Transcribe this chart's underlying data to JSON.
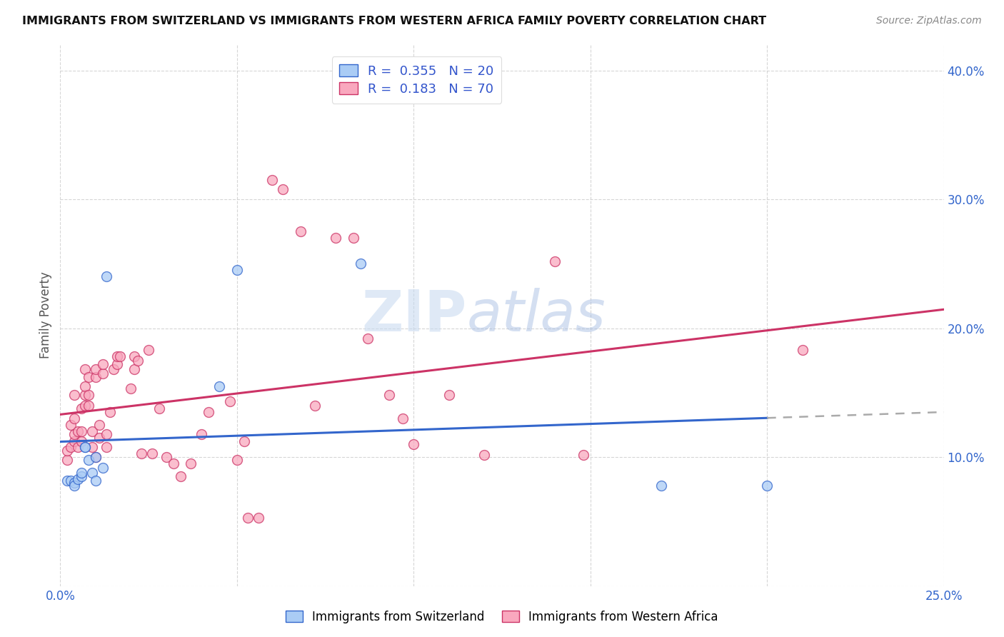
{
  "title": "IMMIGRANTS FROM SWITZERLAND VS IMMIGRANTS FROM WESTERN AFRICA FAMILY POVERTY CORRELATION CHART",
  "source": "Source: ZipAtlas.com",
  "ylabel": "Family Poverty",
  "xlim": [
    0.0,
    0.25
  ],
  "ylim": [
    0.0,
    0.42
  ],
  "xticks": [
    0.0,
    0.05,
    0.1,
    0.15,
    0.2,
    0.25
  ],
  "xticklabels": [
    "0.0%",
    "",
    "",
    "",
    "",
    "25.0%"
  ],
  "yticks": [
    0.0,
    0.1,
    0.2,
    0.3,
    0.4
  ],
  "yticklabels": [
    "",
    "10.0%",
    "20.0%",
    "30.0%",
    "40.0%"
  ],
  "switzerland_color": "#aaccf5",
  "western_africa_color": "#f9a8be",
  "trendline_switzerland_color": "#3366cc",
  "trendline_western_africa_color": "#cc3366",
  "trendline_dashed_color": "#aaaaaa",
  "R_switzerland": 0.355,
  "N_switzerland": 20,
  "R_western_africa": 0.183,
  "N_western_africa": 70,
  "watermark_zip": "ZIP",
  "watermark_atlas": "atlas",
  "legend_label_switzerland": "Immigrants from Switzerland",
  "legend_label_western_africa": "Immigrants from Western Africa",
  "sw_x": [
    0.002,
    0.003,
    0.004,
    0.004,
    0.005,
    0.006,
    0.006,
    0.007,
    0.007,
    0.008,
    0.009,
    0.01,
    0.01,
    0.012,
    0.013,
    0.045,
    0.05,
    0.085,
    0.17,
    0.2
  ],
  "sw_y": [
    0.082,
    0.082,
    0.08,
    0.078,
    0.083,
    0.085,
    0.088,
    0.108,
    0.108,
    0.098,
    0.088,
    0.082,
    0.1,
    0.092,
    0.24,
    0.155,
    0.245,
    0.25,
    0.078,
    0.078
  ],
  "wa_x": [
    0.002,
    0.002,
    0.003,
    0.003,
    0.004,
    0.004,
    0.004,
    0.004,
    0.005,
    0.005,
    0.006,
    0.006,
    0.006,
    0.007,
    0.007,
    0.007,
    0.007,
    0.008,
    0.008,
    0.008,
    0.009,
    0.009,
    0.01,
    0.01,
    0.01,
    0.011,
    0.011,
    0.012,
    0.012,
    0.013,
    0.013,
    0.014,
    0.015,
    0.016,
    0.016,
    0.017,
    0.02,
    0.021,
    0.021,
    0.022,
    0.023,
    0.025,
    0.026,
    0.028,
    0.03,
    0.032,
    0.034,
    0.037,
    0.04,
    0.042,
    0.048,
    0.05,
    0.052,
    0.053,
    0.056,
    0.06,
    0.063,
    0.068,
    0.072,
    0.078,
    0.083,
    0.087,
    0.093,
    0.097,
    0.1,
    0.11,
    0.12,
    0.14,
    0.148,
    0.21
  ],
  "wa_y": [
    0.098,
    0.105,
    0.108,
    0.125,
    0.112,
    0.118,
    0.13,
    0.148,
    0.108,
    0.12,
    0.112,
    0.12,
    0.138,
    0.14,
    0.148,
    0.155,
    0.168,
    0.14,
    0.148,
    0.162,
    0.108,
    0.12,
    0.1,
    0.162,
    0.168,
    0.115,
    0.125,
    0.165,
    0.172,
    0.108,
    0.118,
    0.135,
    0.168,
    0.172,
    0.178,
    0.178,
    0.153,
    0.168,
    0.178,
    0.175,
    0.103,
    0.183,
    0.103,
    0.138,
    0.1,
    0.095,
    0.085,
    0.095,
    0.118,
    0.135,
    0.143,
    0.098,
    0.112,
    0.053,
    0.053,
    0.315,
    0.308,
    0.275,
    0.14,
    0.27,
    0.27,
    0.192,
    0.148,
    0.13,
    0.11,
    0.148,
    0.102,
    0.252,
    0.102,
    0.183
  ]
}
